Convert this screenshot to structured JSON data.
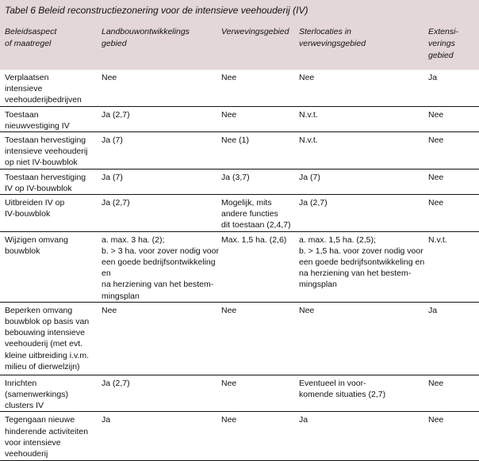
{
  "title": "Tabel 6 Beleid reconstructiezonering voor de intensieve veehouderij (IV)",
  "columns": [
    "Beleidsaspect\nof maatregel",
    "Landbouwontwikkelings\ngebied",
    "Verwevingsgebied",
    "Sterlocaties in\nverwevingsgebied",
    "Extensi-\nverings\ngebied"
  ],
  "rows": [
    [
      "Verplaatsen\nintensieve\nveehouderijbedrijven",
      "Nee",
      "Nee",
      "Nee",
      "Ja"
    ],
    [
      "Toestaan\nnieuwvestiging IV",
      "Ja (2,7)",
      "Nee",
      "N.v.t.",
      "Nee"
    ],
    [
      "Toestaan hervestiging\nintensieve veehouderij\nop niet IV-bouwblok",
      "Ja (7)",
      "Nee (1)",
      "N.v.t.",
      "Nee"
    ],
    [
      "Toestaan hervestiging\nIV op IV-bouwblok",
      "Ja (7)",
      "Ja (3,7)",
      "Ja (7)",
      "Nee"
    ],
    [
      "Uitbreiden IV op\nIV-bouwblok",
      "Ja (2,7)",
      "Mogelijk, mits\nandere functies\ndit toestaan (2,4,7)",
      "Ja (2,7)",
      "Nee"
    ],
    [
      "Wijzigen omvang\nbouwblok",
      "a. max. 3 ha. (2);\nb. > 3 ha. voor zover nodig voor\neen goede bedrijfsontwikkeling en\nna herziening van het bestem-\nmingsplan",
      "Max. 1,5 ha. (2,6)",
      "a. max. 1,5 ha. (2,5);\nb. > 1,5 ha. voor zover nodig voor\neen goede bedrijfsontwikkeling en\nna herziening van het bestem-\nmingsplan",
      "N.v.t."
    ],
    [
      "Beperken omvang\nbouwblok op basis van\nbebouwing intensieve\nveehouderij (met evt.\nkleine uitbreiding i.v.m.\nmilieu of dierwelzijn)",
      "Nee",
      "Nee",
      "Nee",
      "Ja"
    ],
    [
      "Inrichten\n(samenwerkings)\nclusters IV",
      "Ja (2,7)",
      "Nee",
      "Eventueel in voor-\nkomende situaties (2,7)",
      "Nee"
    ],
    [
      "Tegengaan nieuwe\nhinderende activiteiten\nvoor intensieve\nveehouderij",
      "Ja",
      "Nee",
      "Ja",
      "Nee"
    ]
  ],
  "colors": {
    "header_bg": "#e4d7d8"
  }
}
